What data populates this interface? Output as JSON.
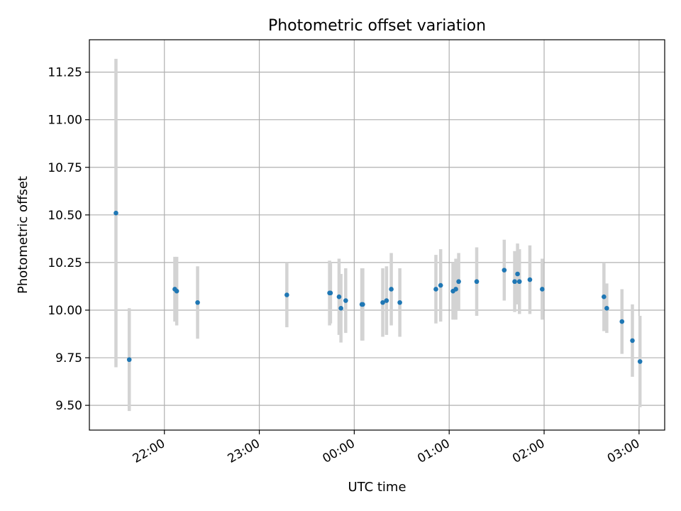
{
  "chart_data": {
    "type": "scatter",
    "title": "Photometric offset variation",
    "xlabel": "UTC time",
    "ylabel": "Photometric offset",
    "x_unit": "hours UTC (values past 24 are after midnight)",
    "xlim": [
      21.21,
      27.27
    ],
    "ylim": [
      9.37,
      11.42
    ],
    "x_ticks": [
      {
        "value": 22,
        "label": "22:00"
      },
      {
        "value": 23,
        "label": "23:00"
      },
      {
        "value": 24,
        "label": "00:00"
      },
      {
        "value": 25,
        "label": "01:00"
      },
      {
        "value": 26,
        "label": "02:00"
      },
      {
        "value": 27,
        "label": "03:00"
      }
    ],
    "y_ticks": [
      {
        "value": 9.5,
        "label": "9.50"
      },
      {
        "value": 9.75,
        "label": "9.75"
      },
      {
        "value": 10.0,
        "label": "10.00"
      },
      {
        "value": 10.25,
        "label": "10.25"
      },
      {
        "value": 10.5,
        "label": "10.50"
      },
      {
        "value": 10.75,
        "label": "10.75"
      },
      {
        "value": 11.0,
        "label": "11.00"
      },
      {
        "value": 11.25,
        "label": "11.25"
      }
    ],
    "grid": true,
    "marker_color": "#1f77b4",
    "errorbar_color": "#d3d3d3",
    "points": [
      {
        "x": 21.49,
        "y": 10.51,
        "err": 0.81
      },
      {
        "x": 21.63,
        "y": 9.74,
        "err": 0.27
      },
      {
        "x": 22.11,
        "y": 10.11,
        "err": 0.17
      },
      {
        "x": 22.13,
        "y": 10.1,
        "err": 0.18
      },
      {
        "x": 22.35,
        "y": 10.04,
        "err": 0.19
      },
      {
        "x": 23.29,
        "y": 10.08,
        "err": 0.17
      },
      {
        "x": 23.74,
        "y": 10.09,
        "err": 0.17
      },
      {
        "x": 23.75,
        "y": 10.09,
        "err": 0.16
      },
      {
        "x": 23.84,
        "y": 10.07,
        "err": 0.2
      },
      {
        "x": 23.86,
        "y": 10.01,
        "err": 0.18
      },
      {
        "x": 23.91,
        "y": 10.05,
        "err": 0.17
      },
      {
        "x": 24.08,
        "y": 10.03,
        "err": 0.19
      },
      {
        "x": 24.09,
        "y": 10.03,
        "err": 0.19
      },
      {
        "x": 24.3,
        "y": 10.04,
        "err": 0.18
      },
      {
        "x": 24.34,
        "y": 10.05,
        "err": 0.18
      },
      {
        "x": 24.39,
        "y": 10.11,
        "err": 0.19
      },
      {
        "x": 24.48,
        "y": 10.04,
        "err": 0.18
      },
      {
        "x": 24.86,
        "y": 10.11,
        "err": 0.18
      },
      {
        "x": 24.91,
        "y": 10.13,
        "err": 0.19
      },
      {
        "x": 25.04,
        "y": 10.1,
        "err": 0.15
      },
      {
        "x": 25.07,
        "y": 10.11,
        "err": 0.16
      },
      {
        "x": 25.1,
        "y": 10.15,
        "err": 0.15
      },
      {
        "x": 25.29,
        "y": 10.15,
        "err": 0.18
      },
      {
        "x": 25.58,
        "y": 10.21,
        "err": 0.16
      },
      {
        "x": 25.69,
        "y": 10.15,
        "err": 0.16
      },
      {
        "x": 25.72,
        "y": 10.19,
        "err": 0.16
      },
      {
        "x": 25.74,
        "y": 10.15,
        "err": 0.17
      },
      {
        "x": 25.85,
        "y": 10.16,
        "err": 0.18
      },
      {
        "x": 25.98,
        "y": 10.11,
        "err": 0.16
      },
      {
        "x": 26.63,
        "y": 10.07,
        "err": 0.18
      },
      {
        "x": 26.66,
        "y": 10.01,
        "err": 0.13
      },
      {
        "x": 26.82,
        "y": 9.94,
        "err": 0.17
      },
      {
        "x": 26.93,
        "y": 9.84,
        "err": 0.19
      },
      {
        "x": 27.01,
        "y": 9.73,
        "err": 0.24
      }
    ]
  }
}
